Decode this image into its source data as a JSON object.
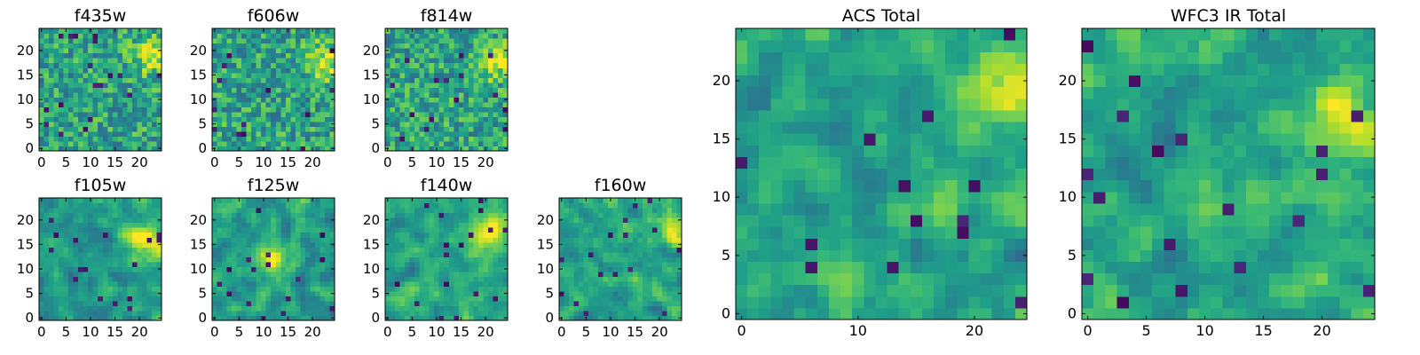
{
  "chart_data": [
    {
      "type": "heatmap",
      "title": "f435w",
      "size": 25,
      "xticks": [
        "0",
        "5",
        "10",
        "15",
        "20"
      ],
      "yticks": [
        "0",
        "5",
        "10",
        "15",
        "20"
      ],
      "texture": "fine",
      "hotspot": [
        23,
        19
      ],
      "range": [
        0,
        1
      ]
    },
    {
      "type": "heatmap",
      "title": "f606w",
      "size": 25,
      "xticks": [
        "0",
        "5",
        "10",
        "15",
        "20"
      ],
      "yticks": [
        "0",
        "5",
        "10",
        "15",
        "20"
      ],
      "texture": "fine",
      "hotspot": [
        23,
        18
      ],
      "range": [
        0,
        1
      ]
    },
    {
      "type": "heatmap",
      "title": "f814w",
      "size": 25,
      "xticks": [
        "0",
        "5",
        "10",
        "15",
        "20"
      ],
      "yticks": [
        "0",
        "5",
        "10",
        "15",
        "20"
      ],
      "texture": "fine",
      "hotspot": [
        22,
        18
      ],
      "range": [
        0,
        1
      ]
    },
    {
      "type": "heatmap",
      "title": "f105w",
      "size": 25,
      "xticks": [
        "0",
        "5",
        "10",
        "15",
        "20"
      ],
      "yticks": [
        "0",
        "5",
        "10",
        "15",
        "20"
      ],
      "texture": "smooth",
      "hotspot": [
        21,
        16
      ],
      "range": [
        0,
        1
      ]
    },
    {
      "type": "heatmap",
      "title": "f125w",
      "size": 25,
      "xticks": [
        "0",
        "5",
        "10",
        "15",
        "20"
      ],
      "yticks": [
        "0",
        "5",
        "10",
        "15",
        "20"
      ],
      "texture": "smooth",
      "hotspot": [
        12,
        12
      ],
      "range": [
        0,
        1
      ]
    },
    {
      "type": "heatmap",
      "title": "f140w",
      "size": 25,
      "xticks": [
        "0",
        "5",
        "10",
        "15",
        "20"
      ],
      "yticks": [
        "0",
        "5",
        "10",
        "15",
        "20"
      ],
      "texture": "smooth",
      "hotspot": [
        21,
        18
      ],
      "range": [
        0,
        1
      ]
    },
    {
      "type": "heatmap",
      "title": "f160w",
      "size": 25,
      "xticks": [
        "0",
        "5",
        "10",
        "15",
        "20"
      ],
      "yticks": [
        "0",
        "5",
        "10",
        "15",
        "20"
      ],
      "texture": "smooth",
      "hotspot": [
        23,
        18
      ],
      "range": [
        0,
        1
      ]
    },
    {
      "type": "heatmap",
      "title": "ACS Total",
      "size": 25,
      "xticks": [
        "0",
        "10",
        "20"
      ],
      "yticks": [
        "0",
        "5",
        "10",
        "15",
        "20"
      ],
      "texture": "medium",
      "hotspot": [
        23,
        19
      ],
      "range": [
        0,
        1
      ]
    },
    {
      "type": "heatmap",
      "title": "WFC3 IR Total",
      "size": 25,
      "xticks": [
        "0",
        "5",
        "10",
        "15",
        "20"
      ],
      "yticks": [
        "0",
        "5",
        "10",
        "15",
        "20"
      ],
      "texture": "smooth",
      "hotspot": [
        22,
        17
      ],
      "range": [
        0,
        1
      ]
    }
  ],
  "colormap": "viridis"
}
